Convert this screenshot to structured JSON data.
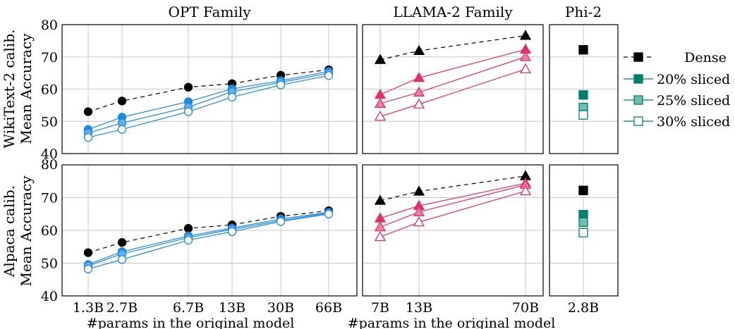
{
  "colors": {
    "dense": "#000000",
    "opt": "#1e88e5",
    "opt_light": "#64aff0",
    "llama": "#e0306a",
    "llama_light": "#ee7fa4",
    "phi_20": "#00806a",
    "phi_25": "#6fbcb0",
    "grid": "#c8c8c8"
  },
  "legend": {
    "dense": "Dense",
    "s20": "20% sliced",
    "s25": "25% sliced",
    "s30": "30% sliced"
  },
  "chart_data": {
    "type": "line",
    "ylim": [
      40,
      80
    ],
    "yticks": [
      40,
      50,
      60,
      70,
      80
    ],
    "row_labels": [
      [
        "WikiText-2 calib.",
        "Mean Accuracy"
      ],
      [
        "Alpaca calib.",
        "Mean Accuracy"
      ]
    ],
    "xlabel": "#params in the original model",
    "panels": [
      {
        "title": "OPT Family",
        "categories": [
          "1.3B",
          "2.7B",
          "6.7B",
          "13B",
          "30B",
          "66B"
        ],
        "marker": "circle",
        "rows": [
          {
            "series": [
              {
                "name": "Dense",
                "values": [
                  53.0,
                  56.3,
                  60.6,
                  61.7,
                  64.3,
                  66.0
                ]
              },
              {
                "name": "20% sliced",
                "values": [
                  47.5,
                  51.3,
                  56.1,
                  60.1,
                  62.6,
                  65.5
                ]
              },
              {
                "name": "25% sliced",
                "values": [
                  46.4,
                  49.5,
                  54.4,
                  59.2,
                  62.1,
                  64.9
                ]
              },
              {
                "name": "30% sliced",
                "values": [
                  45.0,
                  47.5,
                  53.0,
                  57.5,
                  61.3,
                  64.2
                ]
              }
            ]
          },
          {
            "series": [
              {
                "name": "Dense",
                "values": [
                  53.2,
                  56.3,
                  60.6,
                  61.7,
                  64.3,
                  66.0
                ]
              },
              {
                "name": "20% sliced",
                "values": [
                  49.6,
                  53.5,
                  58.3,
                  60.7,
                  63.5,
                  65.5
                ]
              },
              {
                "name": "25% sliced",
                "values": [
                  49.2,
                  52.8,
                  57.8,
                  60.3,
                  63.0,
                  65.3
                ]
              },
              {
                "name": "30% sliced",
                "values": [
                  48.2,
                  51.1,
                  57.0,
                  59.6,
                  62.7,
                  65.0
                ]
              }
            ]
          }
        ]
      },
      {
        "title": "LLAMA-2 Family",
        "categories": [
          "7B",
          "13B",
          "70B"
        ],
        "marker": "triangle",
        "rows": [
          {
            "series": [
              {
                "name": "Dense",
                "values": [
                  69.1,
                  71.9,
                  76.6
                ]
              },
              {
                "name": "20% sliced",
                "values": [
                  58.3,
                  63.5,
                  72.3
                ]
              },
              {
                "name": "25% sliced",
                "values": [
                  55.5,
                  59.0,
                  70.0
                ]
              },
              {
                "name": "30% sliced",
                "values": [
                  51.5,
                  55.3,
                  66.2
                ]
              }
            ]
          },
          {
            "series": [
              {
                "name": "Dense",
                "values": [
                  69.1,
                  71.9,
                  76.6
                ]
              },
              {
                "name": "20% sliced",
                "values": [
                  63.7,
                  67.5,
                  74.4
                ]
              },
              {
                "name": "25% sliced",
                "values": [
                  61.0,
                  65.6,
                  73.9
                ]
              },
              {
                "name": "30% sliced",
                "values": [
                  58.0,
                  62.5,
                  72.0
                ]
              }
            ]
          }
        ]
      },
      {
        "title": "Phi-2",
        "categories": [
          "2.8B"
        ],
        "marker": "square",
        "rows": [
          {
            "series": [
              {
                "name": "Dense",
                "values": [
                  72.2
                ]
              },
              {
                "name": "20% sliced",
                "values": [
                  58.2
                ]
              },
              {
                "name": "25% sliced",
                "values": [
                  54.3
                ]
              },
              {
                "name": "30% sliced",
                "values": [
                  52.0
                ]
              }
            ]
          },
          {
            "series": [
              {
                "name": "Dense",
                "values": [
                  72.2
                ]
              },
              {
                "name": "20% sliced",
                "values": [
                  64.8
                ]
              },
              {
                "name": "25% sliced",
                "values": [
                  62.5
                ]
              },
              {
                "name": "30% sliced",
                "values": [
                  59.3
                ]
              }
            ]
          }
        ]
      }
    ]
  }
}
